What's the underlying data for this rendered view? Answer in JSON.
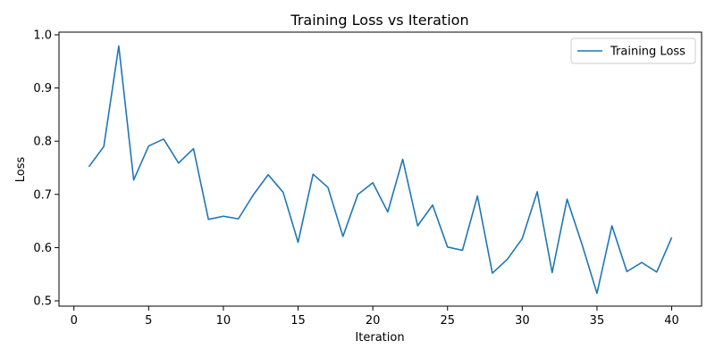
{
  "chart_data": {
    "type": "line",
    "title": "Training Loss vs Iteration",
    "xlabel": "Iteration",
    "ylabel": "Loss",
    "xlim": [
      -1,
      42
    ],
    "ylim": [
      0.49,
      1.005
    ],
    "xticks": [
      0,
      5,
      10,
      15,
      20,
      25,
      30,
      35,
      40
    ],
    "yticks": [
      0.5,
      0.6,
      0.7,
      0.8,
      0.9,
      1.0
    ],
    "ytick_labels": [
      "0.5",
      "0.6",
      "0.7",
      "0.8",
      "0.9",
      "1.0"
    ],
    "grid": false,
    "legend_position": "top-right",
    "series": [
      {
        "name": "Training Loss",
        "color": "#1f77b4",
        "x": [
          1,
          2,
          3,
          4,
          5,
          6,
          7,
          8,
          9,
          10,
          11,
          12,
          13,
          14,
          15,
          16,
          17,
          18,
          19,
          20,
          21,
          22,
          23,
          24,
          25,
          26,
          27,
          28,
          29,
          30,
          31,
          32,
          33,
          34,
          35,
          36,
          37,
          38,
          39,
          40
        ],
        "y": [
          0.752,
          0.79,
          0.979,
          0.727,
          0.791,
          0.804,
          0.759,
          0.786,
          0.653,
          0.659,
          0.654,
          0.699,
          0.737,
          0.704,
          0.61,
          0.738,
          0.713,
          0.621,
          0.7,
          0.722,
          0.667,
          0.766,
          0.641,
          0.68,
          0.601,
          0.595,
          0.697,
          0.552,
          0.578,
          0.617,
          0.705,
          0.553,
          0.691,
          0.606,
          0.514,
          0.641,
          0.555,
          0.572,
          0.554,
          0.619
        ]
      }
    ]
  }
}
